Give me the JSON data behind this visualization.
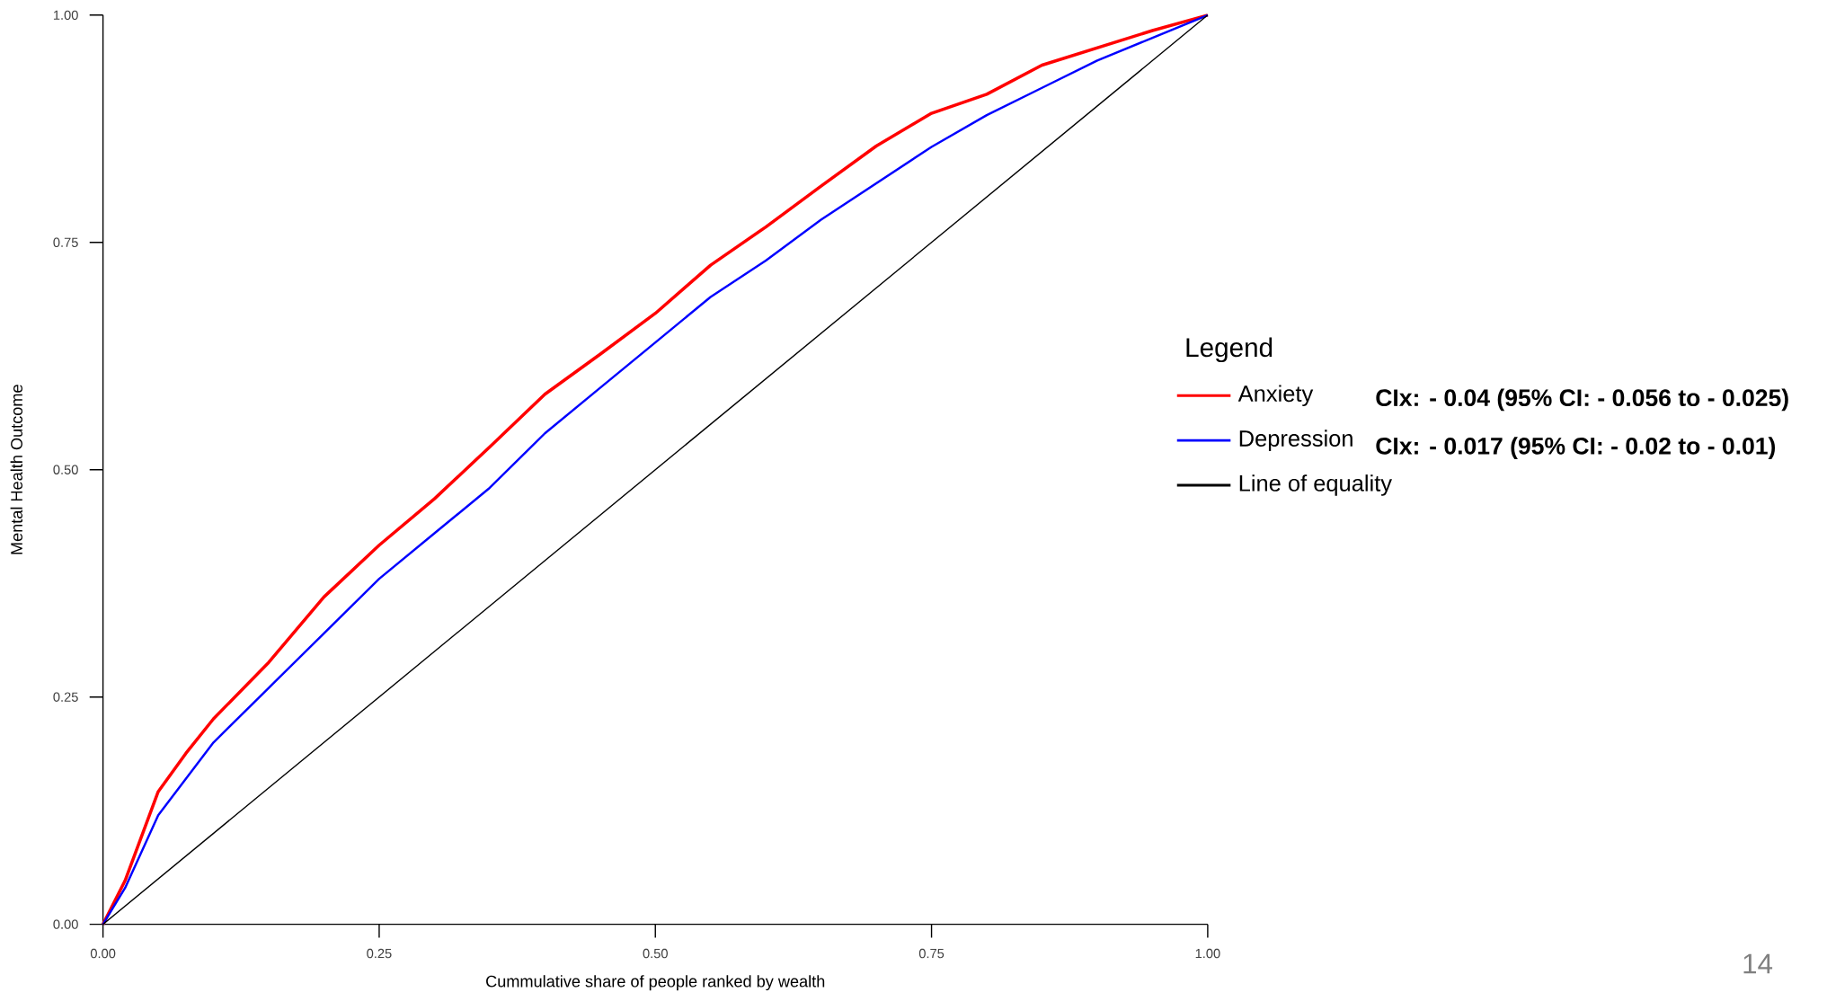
{
  "chart_data": {
    "type": "line",
    "xlabel": "Cummulative share of people ranked by wealth",
    "ylabel": "Mental Health Outcome",
    "legend_title": "Legend",
    "legend": "right",
    "grid": false,
    "xlim": [
      0,
      1
    ],
    "ylim": [
      0,
      1
    ],
    "xticks": [
      {
        "value": 0,
        "label": "0.00"
      },
      {
        "value": 0.25,
        "label": "0.25"
      },
      {
        "value": 0.5,
        "label": "0.50"
      },
      {
        "value": 0.75,
        "label": "0.75"
      },
      {
        "value": 1,
        "label": "1.00"
      }
    ],
    "yticks": [
      {
        "value": 0,
        "label": "0.00"
      },
      {
        "value": 0.25,
        "label": "0.25"
      },
      {
        "value": 0.5,
        "label": "0.50"
      },
      {
        "value": 0.75,
        "label": "0.75"
      },
      {
        "value": 1,
        "label": "1.00"
      }
    ],
    "x": [
      0,
      0.02,
      0.05,
      0.075,
      0.1,
      0.15,
      0.2,
      0.25,
      0.3,
      0.35,
      0.4,
      0.45,
      0.5,
      0.55,
      0.6,
      0.65,
      0.7,
      0.75,
      0.8,
      0.85,
      0.9,
      0.95,
      1
    ],
    "series": [
      {
        "name": "Anxiety",
        "color": "#ff0000",
        "values": [
          0,
          0.048,
          0.146,
          0.188,
          0.226,
          0.288,
          0.36,
          0.417,
          0.468,
          0.525,
          0.583,
          0.627,
          0.672,
          0.725,
          0.767,
          0.812,
          0.856,
          0.892,
          0.913,
          0.945,
          0.964,
          0.983,
          1
        ]
      },
      {
        "name": "Depression",
        "color": "#0000ff",
        "values": [
          0,
          0.04,
          0.12,
          0.16,
          0.2,
          0.26,
          0.32,
          0.38,
          0.43,
          0.48,
          0.54,
          0.59,
          0.64,
          0.69,
          0.73,
          0.775,
          0.815,
          0.855,
          0.89,
          0.92,
          0.95,
          0.975,
          1
        ]
      },
      {
        "name": "Line of equality",
        "color": "#000000",
        "type": "line",
        "x": [
          0,
          1
        ],
        "values": [
          0,
          1
        ]
      }
    ],
    "annotations": [
      "CIx: - 0.04   (95% CI: - 0.056 to - 0.025)",
      "CIx: - 0.017 (95% CI: - 0.02 to - 0.01)",
      "14"
    ]
  }
}
